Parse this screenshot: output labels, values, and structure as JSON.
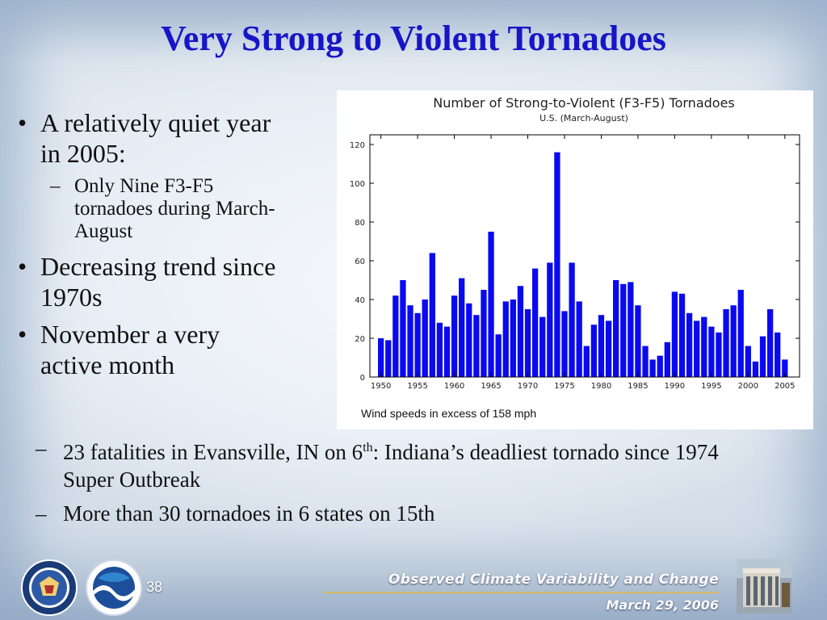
{
  "slide": {
    "title": "Very Strong to Violent Tornadoes",
    "page_number": "38",
    "footer_title": "Observed Climate Variability and Change",
    "footer_date": "March 29, 2006"
  },
  "bullets": [
    {
      "text": "A relatively quiet year in 2005:",
      "sub": [
        "Only Nine F3-F5 tornadoes during March-August"
      ]
    },
    {
      "text": "Decreasing trend since 1970s",
      "sub": []
    },
    {
      "text": "November a very active month",
      "sub": []
    }
  ],
  "subpoints": {
    "fatalities_before": "23 fatalities in Evansville, IN on 6",
    "fatalities_sup": "th",
    "fatalities_after": ": Indiana’s deadliest tornado since 1974 Super Outbreak",
    "states": "More than 30 tornadoes in 6 states on 15th"
  },
  "colors": {
    "title": "#1616c8",
    "bar": "#0a0af0",
    "footer_rule": "#d7b860"
  },
  "logos": {
    "commerce_seal": "seal-icon",
    "noaa_emblem": "noaa-icon",
    "building_photo": "building-icon"
  },
  "chart_data": {
    "type": "bar",
    "title": "Number of Strong-to-Violent (F3-F5) Tornadoes",
    "subtitle": "U.S. (March-August)",
    "xlabel": "",
    "ylabel": "",
    "note": "Wind speeds in excess of 158 mph",
    "x": [
      1950,
      1951,
      1952,
      1953,
      1954,
      1955,
      1956,
      1957,
      1958,
      1959,
      1960,
      1961,
      1962,
      1963,
      1964,
      1965,
      1966,
      1967,
      1968,
      1969,
      1970,
      1971,
      1972,
      1973,
      1974,
      1975,
      1976,
      1977,
      1978,
      1979,
      1980,
      1981,
      1982,
      1983,
      1984,
      1985,
      1986,
      1987,
      1988,
      1989,
      1990,
      1991,
      1992,
      1993,
      1994,
      1995,
      1996,
      1997,
      1998,
      1999,
      2000,
      2001,
      2002,
      2003,
      2004,
      2005
    ],
    "values": [
      20,
      19,
      42,
      50,
      37,
      33,
      40,
      64,
      28,
      26,
      42,
      51,
      38,
      32,
      45,
      75,
      22,
      39,
      40,
      47,
      35,
      56,
      31,
      59,
      116,
      34,
      59,
      39,
      16,
      27,
      32,
      29,
      50,
      48,
      49,
      37,
      16,
      9,
      11,
      18,
      44,
      43,
      33,
      29,
      31,
      26,
      23,
      35,
      37,
      45,
      16,
      8,
      21,
      35,
      23,
      9
    ],
    "ylim": [
      0,
      125
    ],
    "yticks": [
      0,
      20,
      40,
      60,
      80,
      100,
      120
    ],
    "xticks": [
      1950,
      1955,
      1960,
      1965,
      1970,
      1975,
      1980,
      1985,
      1990,
      1995,
      2000,
      2005
    ],
    "grid": false
  }
}
